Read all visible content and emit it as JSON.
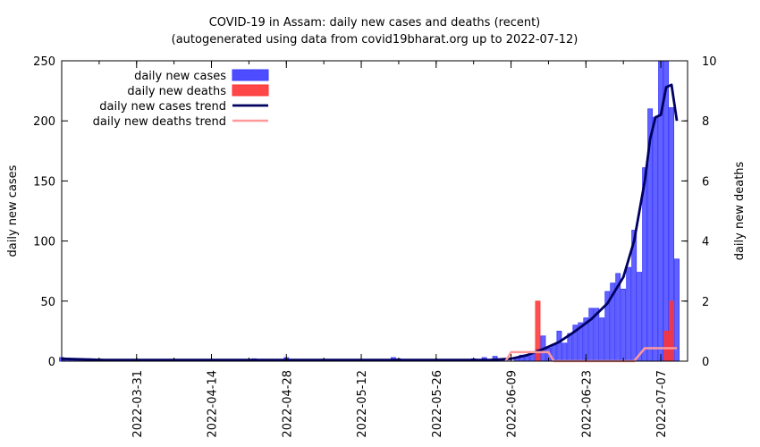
{
  "chart_data": {
    "type": "bar",
    "title": "COVID-19 in Assam: daily new cases and deaths (recent)",
    "subtitle": "(autogenerated using data from covid19bharat.org up to 2022-07-12)",
    "ylabel": "daily new cases",
    "y2label": "daily new deaths",
    "x_range": [
      "2022-03-17",
      "2022-07-12"
    ],
    "ylim": [
      0,
      250
    ],
    "y2lim": [
      0,
      10
    ],
    "y_ticks": [
      0,
      50,
      100,
      150,
      200,
      250
    ],
    "y2_ticks": [
      0,
      2,
      4,
      6,
      8,
      10
    ],
    "x_tick_labels": [
      "2022-03-31",
      "2022-04-14",
      "2022-04-28",
      "2022-05-12",
      "2022-05-26",
      "2022-06-09",
      "2022-06-23",
      "2022-07-07"
    ],
    "legend": {
      "placement": "top-left",
      "entries": [
        {
          "label": "daily new cases",
          "kind": "bar",
          "color": "#3a3aff"
        },
        {
          "label": "daily new deaths",
          "kind": "bar",
          "color": "#ff3333"
        },
        {
          "label": "daily new cases trend",
          "kind": "line",
          "color": "#000060"
        },
        {
          "label": "daily new deaths trend",
          "kind": "line",
          "color": "#ff9999"
        }
      ]
    },
    "series": [
      {
        "name": "daily new cases",
        "axis": "y",
        "color": "#3a3aff",
        "points": [
          [
            "2022-03-17",
            3
          ],
          [
            "2022-03-18",
            2
          ],
          [
            "2022-03-19",
            2
          ],
          [
            "2022-03-20",
            1
          ],
          [
            "2022-03-21",
            1
          ],
          [
            "2022-03-22",
            2
          ],
          [
            "2022-03-23",
            1
          ],
          [
            "2022-03-24",
            1
          ],
          [
            "2022-03-25",
            1
          ],
          [
            "2022-03-26",
            0
          ],
          [
            "2022-03-28",
            1
          ],
          [
            "2022-03-31",
            1
          ],
          [
            "2022-04-05",
            1
          ],
          [
            "2022-04-08",
            1
          ],
          [
            "2022-04-12",
            1
          ],
          [
            "2022-04-15",
            1
          ],
          [
            "2022-04-18",
            1
          ],
          [
            "2022-04-20",
            1
          ],
          [
            "2022-04-22",
            2
          ],
          [
            "2022-04-23",
            1
          ],
          [
            "2022-04-25",
            1
          ],
          [
            "2022-04-27",
            1
          ],
          [
            "2022-04-28",
            3
          ],
          [
            "2022-04-30",
            1
          ],
          [
            "2022-05-02",
            1
          ],
          [
            "2022-05-05",
            1
          ],
          [
            "2022-05-07",
            1
          ],
          [
            "2022-05-10",
            1
          ],
          [
            "2022-05-14",
            1
          ],
          [
            "2022-05-18",
            3
          ],
          [
            "2022-05-19",
            2
          ],
          [
            "2022-05-20",
            1
          ],
          [
            "2022-05-22",
            1
          ],
          [
            "2022-05-27",
            1
          ],
          [
            "2022-05-30",
            1
          ],
          [
            "2022-06-01",
            1
          ],
          [
            "2022-06-02",
            2
          ],
          [
            "2022-06-04",
            3
          ],
          [
            "2022-06-05",
            1
          ],
          [
            "2022-06-06",
            4
          ],
          [
            "2022-06-07",
            1
          ],
          [
            "2022-06-08",
            2
          ],
          [
            "2022-06-10",
            3
          ],
          [
            "2022-06-11",
            5
          ],
          [
            "2022-06-12",
            4
          ],
          [
            "2022-06-13",
            8
          ],
          [
            "2022-06-14",
            10
          ],
          [
            "2022-06-15",
            21
          ],
          [
            "2022-06-16",
            11
          ],
          [
            "2022-06-17",
            14
          ],
          [
            "2022-06-18",
            25
          ],
          [
            "2022-06-19",
            15
          ],
          [
            "2022-06-20",
            23
          ],
          [
            "2022-06-21",
            30
          ],
          [
            "2022-06-22",
            32
          ],
          [
            "2022-06-23",
            36
          ],
          [
            "2022-06-24",
            44
          ],
          [
            "2022-06-25",
            44
          ],
          [
            "2022-06-26",
            36
          ],
          [
            "2022-06-27",
            58
          ],
          [
            "2022-06-28",
            65
          ],
          [
            "2022-06-29",
            73
          ],
          [
            "2022-06-30",
            60
          ],
          [
            "2022-07-01",
            78
          ],
          [
            "2022-07-02",
            109
          ],
          [
            "2022-07-03",
            74
          ],
          [
            "2022-07-04",
            161
          ],
          [
            "2022-07-05",
            210
          ],
          [
            "2022-07-06",
            203
          ],
          [
            "2022-07-07",
            250
          ],
          [
            "2022-07-08",
            250
          ],
          [
            "2022-07-09",
            211
          ],
          [
            "2022-07-10",
            85
          ]
        ]
      },
      {
        "name": "daily new deaths",
        "axis": "y2",
        "color": "#ff3333",
        "points": [
          [
            "2022-06-14",
            2
          ],
          [
            "2022-07-08",
            1
          ],
          [
            "2022-07-09",
            2
          ]
        ]
      },
      {
        "name": "daily new cases trend",
        "axis": "y",
        "color": "#000060",
        "points": [
          [
            "2022-03-17",
            2
          ],
          [
            "2022-03-25",
            1
          ],
          [
            "2022-04-10",
            1
          ],
          [
            "2022-05-10",
            1
          ],
          [
            "2022-06-05",
            1
          ],
          [
            "2022-06-09",
            2
          ],
          [
            "2022-06-12",
            5
          ],
          [
            "2022-06-15",
            10
          ],
          [
            "2022-06-18",
            16
          ],
          [
            "2022-06-21",
            25
          ],
          [
            "2022-06-24",
            35
          ],
          [
            "2022-06-27",
            48
          ],
          [
            "2022-06-30",
            70
          ],
          [
            "2022-07-02",
            100
          ],
          [
            "2022-07-04",
            150
          ],
          [
            "2022-07-05",
            185
          ],
          [
            "2022-07-06",
            203
          ],
          [
            "2022-07-07",
            205
          ],
          [
            "2022-07-08",
            228
          ],
          [
            "2022-07-09",
            230
          ],
          [
            "2022-07-10",
            200
          ]
        ]
      },
      {
        "name": "daily new deaths trend",
        "axis": "y2",
        "color": "#ff9999",
        "points": [
          [
            "2022-06-08",
            0
          ],
          [
            "2022-06-09",
            0.3
          ],
          [
            "2022-06-16",
            0.3
          ],
          [
            "2022-06-17",
            0
          ],
          [
            "2022-07-02",
            0
          ],
          [
            "2022-07-04",
            0.43
          ],
          [
            "2022-07-10",
            0.43
          ]
        ]
      }
    ]
  }
}
